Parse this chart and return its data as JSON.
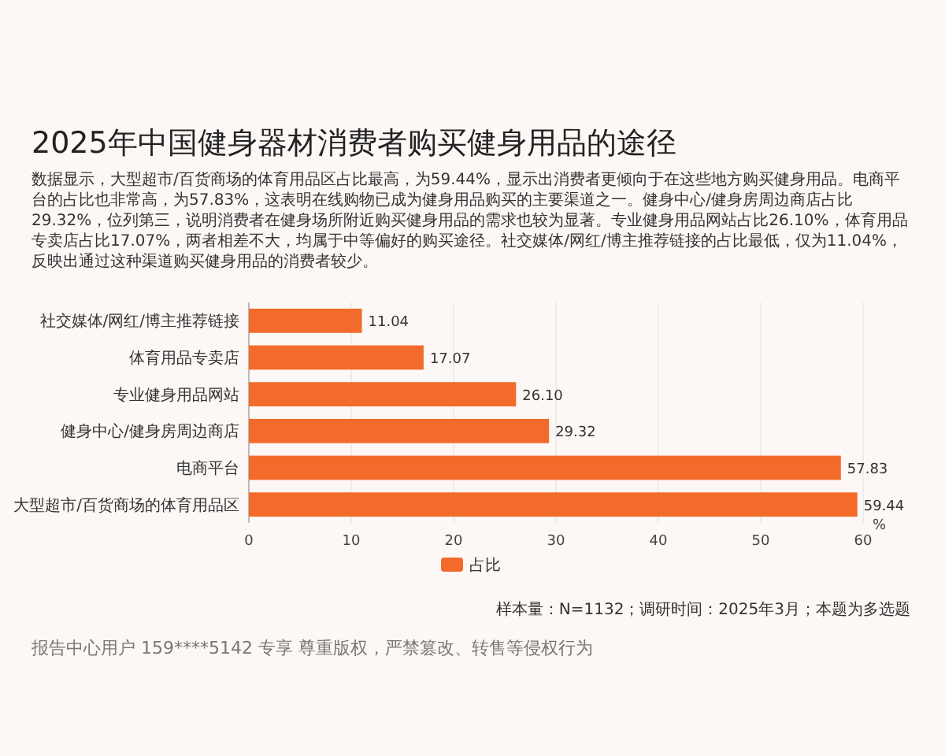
{
  "chart_data": {
    "type": "bar",
    "orientation": "horizontal",
    "title": "2025年中国健身器材消费者购买健身用品的途径",
    "subtitle": "数据显示，大型超市/百货商场的体育用品区占比最高，为59.44%，显示出消费者更倾向于在这些地方购买健身用品。电商平台的占比也非常高，为57.83%，这表明在线购物已成为健身用品购买的主要渠道之一。健身中心/健身房周边商店占比29.32%，位列第三，说明消费者在健身场所附近购买健身用品的需求也较为显著。专业健身用品网站占比26.10%，体育用品专卖店占比17.07%，两者相差不大，均属于中等偏好的购买途径。社交媒体/网红/博主推荐链接的占比最低，仅为11.04%，反映出通过这种渠道购买健身用品的消费者较少。",
    "categories": [
      "社交媒体/网红/博主推荐链接",
      "体育用品专卖店",
      "专业健身用品网站",
      "健身中心/健身房周边商店",
      "电商平台",
      "大型超市/百货商场的体育用品区"
    ],
    "series": [
      {
        "name": "占比",
        "color": "#f26b2a",
        "values": [
          11.04,
          17.07,
          26.1,
          29.32,
          57.83,
          59.44
        ],
        "value_labels": [
          "11.04",
          "17.07",
          "26.10",
          "29.32",
          "57.83",
          "59.44"
        ]
      }
    ],
    "xlabel": "%",
    "xlim": [
      0,
      60
    ],
    "xticks": [
      0,
      10,
      20,
      30,
      40,
      50,
      60
    ],
    "grid": "x",
    "legend": "bottom",
    "annotations": [
      "样本量：N=1132；调研时间：2025年3月；本题为多选题",
      "报告中心用户 159****5142 专享 尊重版权，严禁篡改、转售等侵权行为"
    ]
  }
}
